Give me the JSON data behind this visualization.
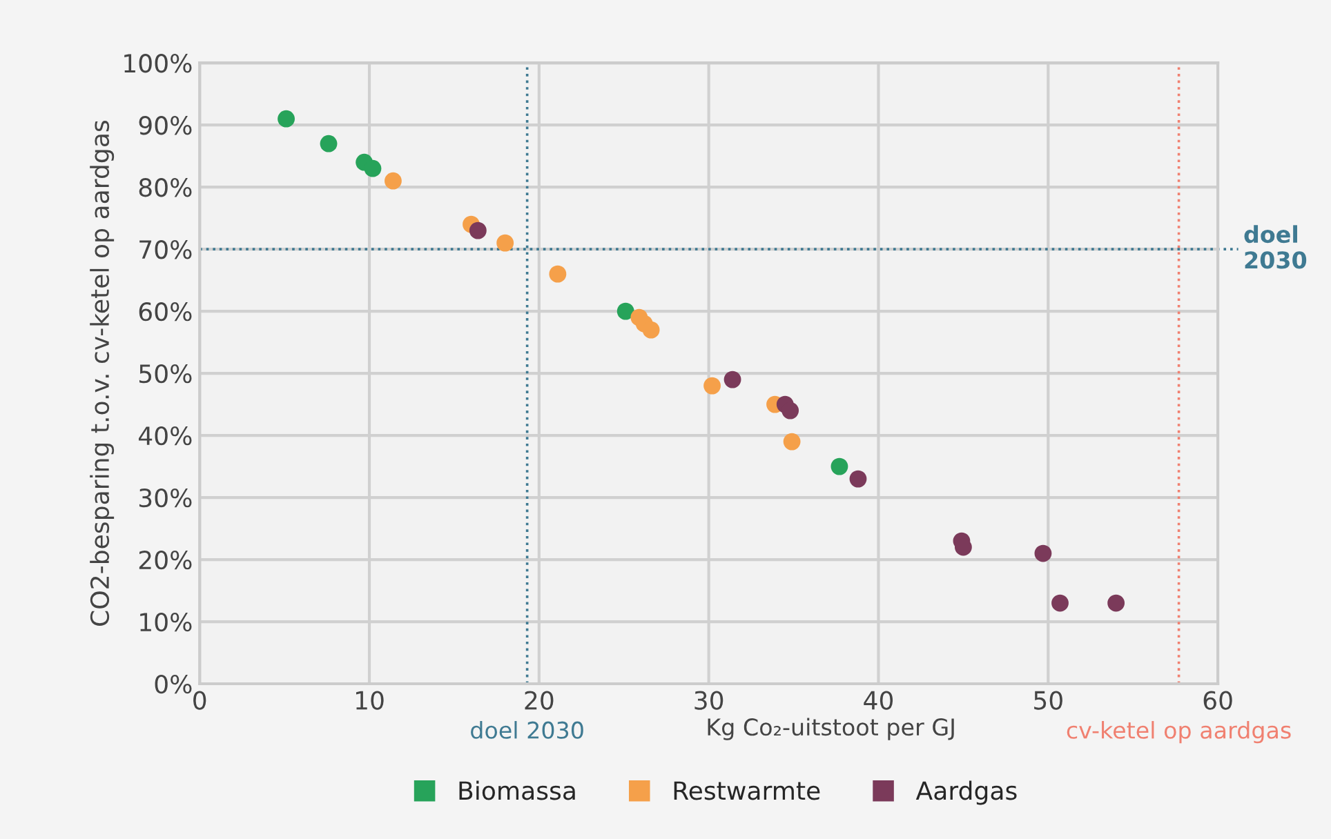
{
  "chart_data": {
    "type": "scatter",
    "xlabel": "Kg Co₂-uitstoot per GJ",
    "ylabel": "CO2-besparing t.o.v. cv-ketel op aardgas",
    "xlim": [
      0,
      60
    ],
    "xticks": [
      0,
      10,
      20,
      30,
      40,
      50,
      60
    ],
    "ylim": [
      0,
      100
    ],
    "yticks": [
      {
        "value": 0,
        "label": "0%"
      },
      {
        "value": 10,
        "label": "10%"
      },
      {
        "value": 20,
        "label": "20%"
      },
      {
        "value": 30,
        "label": "30%"
      },
      {
        "value": 40,
        "label": "40%"
      },
      {
        "value": 50,
        "label": "50%"
      },
      {
        "value": 60,
        "label": "60%"
      },
      {
        "value": 70,
        "label": "70%"
      },
      {
        "value": 80,
        "label": "80%"
      },
      {
        "value": 90,
        "label": "90%"
      },
      {
        "value": 100,
        "label": "100%"
      }
    ],
    "grid": true,
    "legend": "bottom",
    "marker": "circle",
    "series": [
      {
        "name": "Biomassa",
        "color": "#27a35a",
        "x": [
          5.1,
          7.6,
          9.7,
          10.2,
          25.1,
          37.7
        ],
        "values": [
          91,
          87,
          84,
          83,
          60,
          35
        ]
      },
      {
        "name": "Restwarmte",
        "color": "#f5a04a",
        "x": [
          11.4,
          16.0,
          18.0,
          21.1,
          25.9,
          26.2,
          26.6,
          30.2,
          33.9,
          34.9
        ],
        "values": [
          81,
          74,
          71,
          66,
          59,
          58,
          57,
          48,
          45,
          39
        ]
      },
      {
        "name": "Aardgas",
        "color": "#7b3a5a",
        "x": [
          16.4,
          31.4,
          34.5,
          34.8,
          38.8,
          44.9,
          45.0,
          49.7,
          50.7,
          54.0
        ],
        "values": [
          73,
          49,
          45,
          44,
          33,
          23,
          22,
          21,
          13,
          13
        ]
      }
    ],
    "ref_lines": [
      {
        "axis": "x",
        "value": 19.3,
        "label": "doel 2030",
        "color": "#3f7a92",
        "line_style": "dotted"
      },
      {
        "axis": "x",
        "value": 57.7,
        "label": "cv-ketel op aardgas",
        "color": "#f08070",
        "line_style": "dotted"
      },
      {
        "axis": "y",
        "value": 70,
        "label": "doel\n2030",
        "color": "#3f7a92",
        "line_style": "dotted"
      }
    ]
  }
}
